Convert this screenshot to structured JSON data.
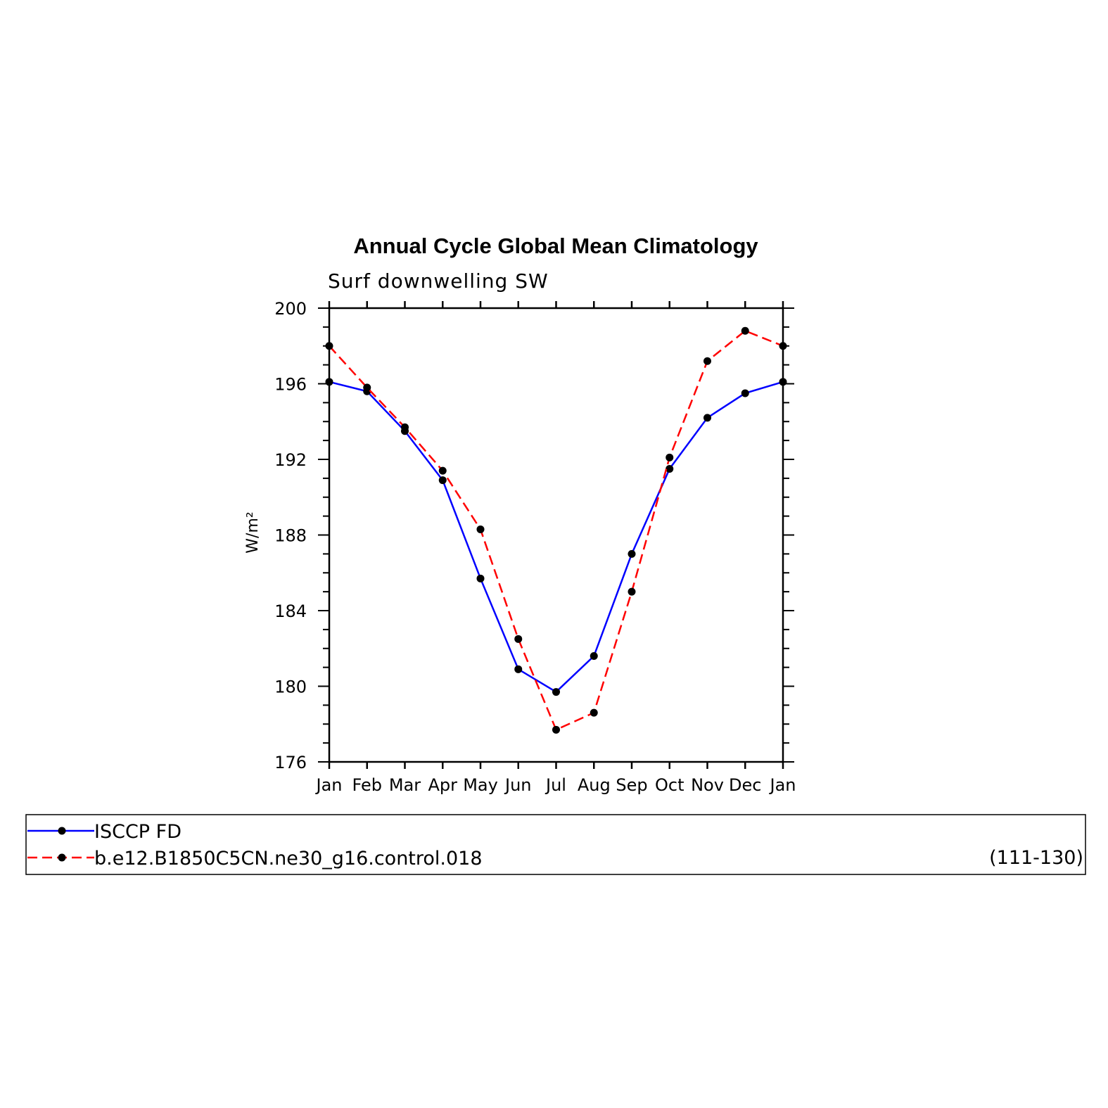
{
  "chart_data": {
    "type": "line",
    "title": "Annual Cycle Global Mean Climatology",
    "subtitle": "Surf downwelling SW",
    "ylabel": "W/m²",
    "xlabel": "",
    "categories": [
      "Jan",
      "Feb",
      "Mar",
      "Apr",
      "May",
      "Jun",
      "Jul",
      "Aug",
      "Sep",
      "Oct",
      "Nov",
      "Dec",
      "Jan"
    ],
    "ylim": [
      176,
      200
    ],
    "yticks": [
      176,
      180,
      184,
      188,
      192,
      196,
      200
    ],
    "series": [
      {
        "name": "ISCCP FD",
        "color": "#0000ff",
        "style": "solid",
        "values": [
          196.1,
          195.6,
          193.5,
          190.9,
          185.7,
          180.9,
          179.7,
          181.6,
          187.0,
          191.5,
          194.2,
          195.5,
          196.1
        ]
      },
      {
        "name": "b.e12.B1850C5CN.ne30_g16.control.018",
        "color": "#ff0000",
        "style": "dashed",
        "values": [
          198.0,
          195.8,
          193.7,
          191.4,
          188.3,
          182.5,
          177.7,
          178.6,
          185.0,
          192.1,
          197.2,
          198.8,
          198.0
        ]
      }
    ],
    "legend": {
      "placement": "bottom",
      "note": "(111-130)"
    },
    "grid": false
  }
}
